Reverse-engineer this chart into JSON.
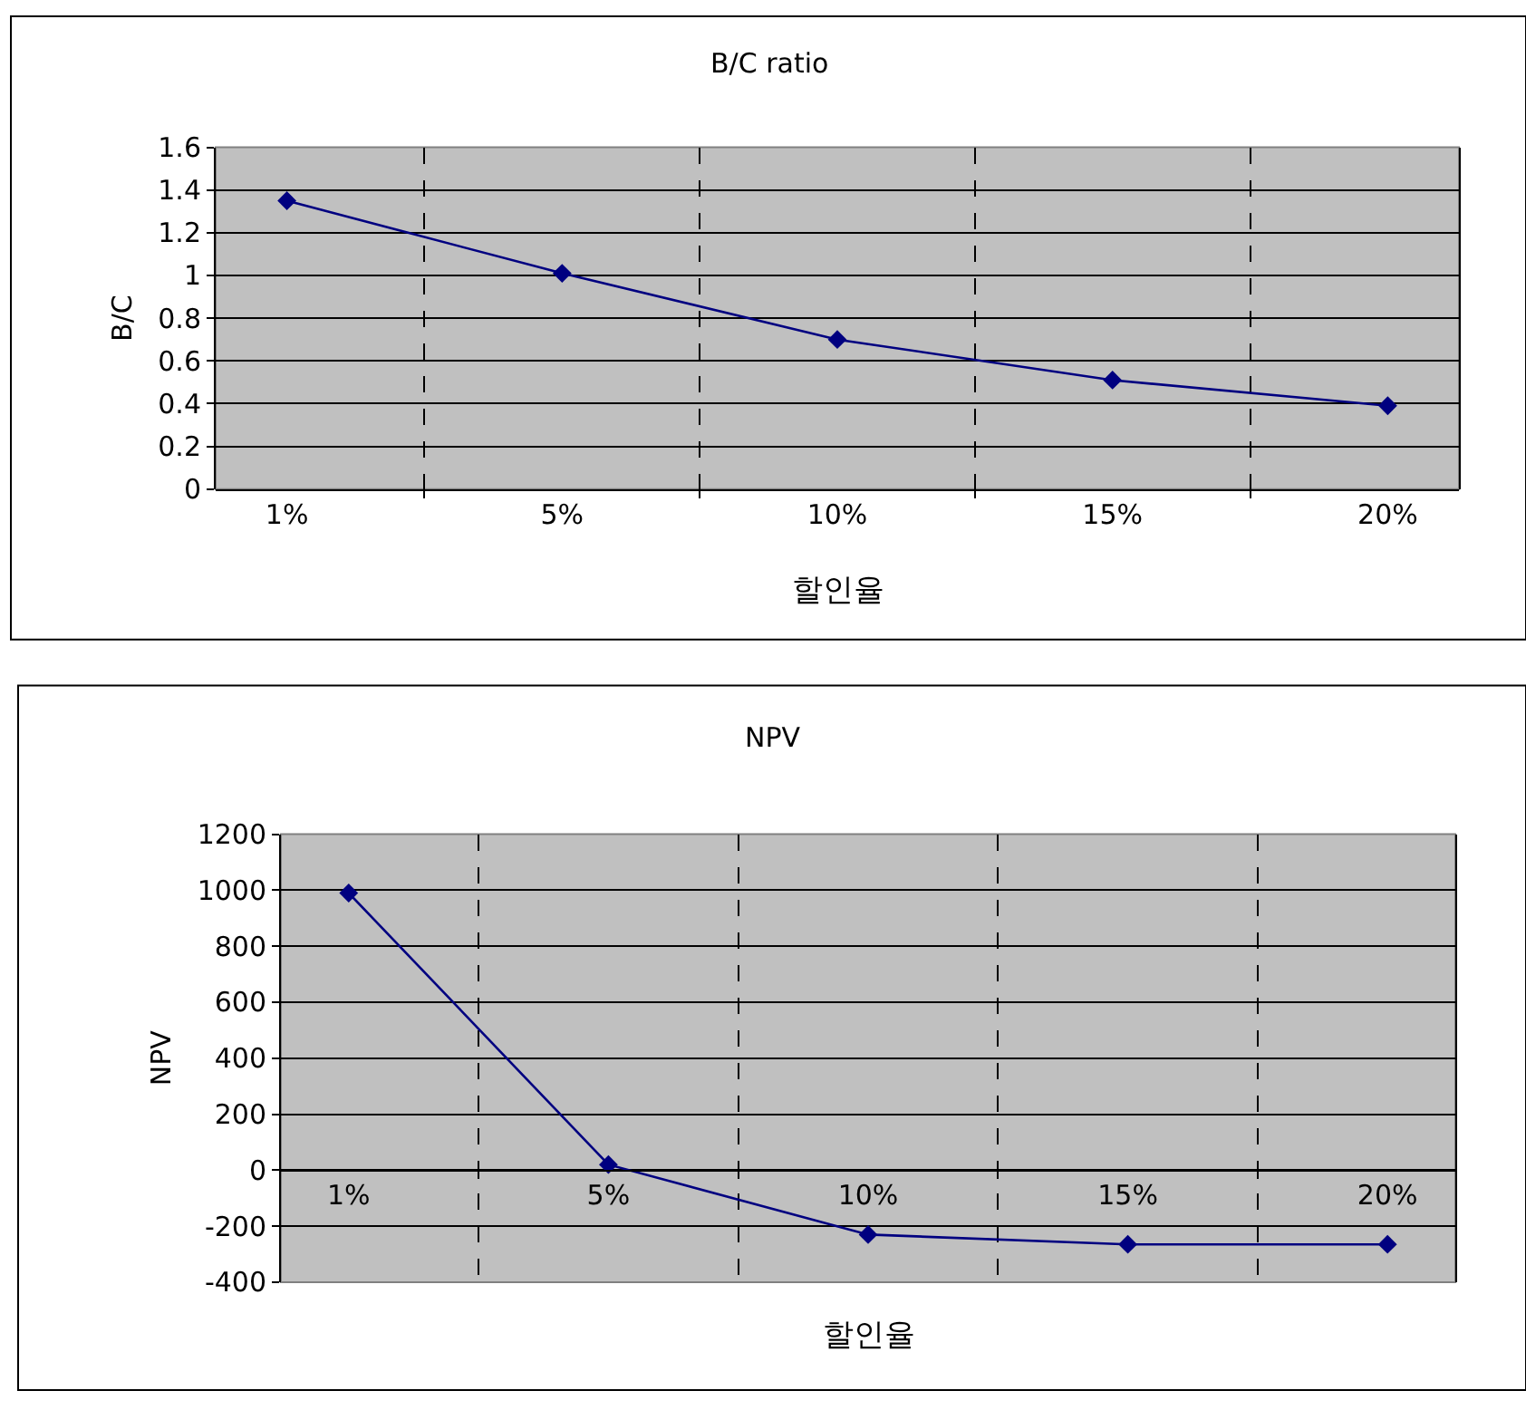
{
  "chart_data": [
    {
      "type": "line",
      "title": "B/C ratio",
      "xlabel": "할인율",
      "ylabel": "B/C",
      "categories": [
        "1%",
        "5%",
        "10%",
        "15%",
        "20%"
      ],
      "values": [
        1.35,
        1.01,
        0.7,
        0.51,
        0.39
      ],
      "color": "#000080",
      "marker": "diamond",
      "ylim": [
        0,
        1.6
      ],
      "yticks": [
        0,
        0.2,
        0.4,
        0.6,
        0.8,
        1,
        1.2,
        1.4,
        1.6
      ],
      "grid": true
    },
    {
      "type": "line",
      "title": "NPV",
      "xlabel": "할인율",
      "ylabel": "NPV",
      "categories": [
        "1%",
        "5%",
        "10%",
        "15%",
        "20%"
      ],
      "values": [
        990,
        20,
        -230,
        -265,
        -265
      ],
      "color": "#000080",
      "marker": "diamond",
      "ylim": [
        -400,
        1200
      ],
      "yticks": [
        -400,
        -200,
        0,
        200,
        400,
        600,
        800,
        1000,
        1200
      ],
      "grid": true
    }
  ]
}
